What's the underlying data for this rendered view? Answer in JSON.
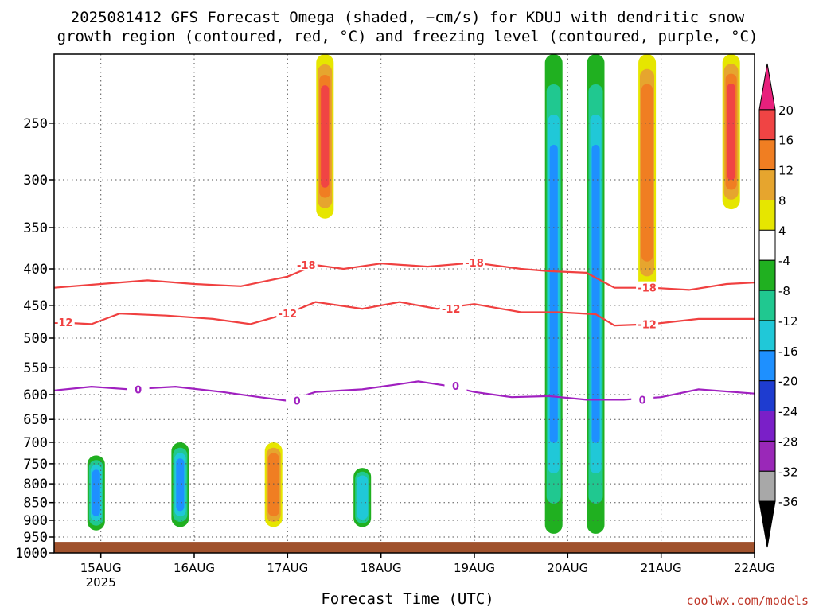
{
  "title": {
    "line1": "2025081412 GFS Forecast Omega (shaded, −cm/s) for KDUJ with dendritic snow",
    "line2": "growth region (contoured, red, °C) and freezing level (contoured, purple, °C)"
  },
  "credit": "coolwx.com/models",
  "colors": {
    "ground": "#a0522d",
    "dgz_contour": "#f04040",
    "freezing_contour": "#a020c0",
    "grid": "#555555"
  },
  "chart_data": {
    "type": "heatmap",
    "xlabel": "Forecast Time (UTC)",
    "ylabel": "",
    "x_ticks": [
      "15AUG",
      "16AUG",
      "17AUG",
      "18AUG",
      "19AUG",
      "20AUG",
      "21AUG",
      "22AUG"
    ],
    "x_sublabel": "2025",
    "x_range_days": [
      14.5,
      22.0
    ],
    "y_ticks": [
      250,
      300,
      350,
      400,
      450,
      500,
      550,
      600,
      650,
      700,
      750,
      800,
      850,
      900,
      950,
      1000
    ],
    "y_range_hpa": [
      1000,
      200
    ],
    "y_scale": "log-pressure",
    "colorbar": {
      "labels": [
        20,
        16,
        12,
        8,
        4,
        -4,
        -8,
        -12,
        -16,
        -20,
        -24,
        -28,
        -32,
        -36
      ],
      "colors": [
        "#e8207c",
        "#f04444",
        "#f07e22",
        "#e6a52e",
        "#e6e600",
        "#ffffff",
        "#20b020",
        "#20c890",
        "#20c8d8",
        "#1e90ff",
        "#1e3cd0",
        "#7a1fc8",
        "#9a28b8",
        "#a8a8a8",
        "#000000"
      ]
    },
    "shaded_features": [
      {
        "day": 14.95,
        "p_top": 730,
        "p_bottom": 930,
        "omega": -14
      },
      {
        "day": 15.85,
        "p_top": 700,
        "p_bottom": 920,
        "omega": -24
      },
      {
        "day": 16.85,
        "p_top": 700,
        "p_bottom": 920,
        "omega": 12
      },
      {
        "day": 17.4,
        "p_top": 200,
        "p_bottom": 340,
        "omega": 14
      },
      {
        "day": 17.8,
        "p_top": 760,
        "p_bottom": 920,
        "omega": -12
      },
      {
        "day": 19.85,
        "p_top": 200,
        "p_bottom": 940,
        "omega": -16
      },
      {
        "day": 20.3,
        "p_top": 200,
        "p_bottom": 940,
        "omega": -20
      },
      {
        "day": 20.85,
        "p_top": 200,
        "p_bottom": 430,
        "omega": 10
      },
      {
        "day": 21.75,
        "p_top": 200,
        "p_bottom": 330,
        "omega": 14
      }
    ],
    "contours": [
      {
        "series": "-18",
        "label": "-18",
        "points": [
          {
            "day": 14.5,
            "p": 425
          },
          {
            "day": 15.0,
            "p": 420
          },
          {
            "day": 15.5,
            "p": 415
          },
          {
            "day": 16.0,
            "p": 420
          },
          {
            "day": 16.5,
            "p": 423
          },
          {
            "day": 17.0,
            "p": 410
          },
          {
            "day": 17.3,
            "p": 395
          },
          {
            "day": 17.6,
            "p": 400
          },
          {
            "day": 18.0,
            "p": 393
          },
          {
            "day": 18.5,
            "p": 397
          },
          {
            "day": 19.0,
            "p": 392
          },
          {
            "day": 19.5,
            "p": 400
          },
          {
            "day": 19.8,
            "p": 403
          },
          {
            "day": 20.2,
            "p": 405
          },
          {
            "day": 20.5,
            "p": 425
          },
          {
            "day": 20.9,
            "p": 425
          },
          {
            "day": 21.3,
            "p": 428
          },
          {
            "day": 21.7,
            "p": 420
          },
          {
            "day": 22.0,
            "p": 418
          }
        ],
        "labels_at_days": [
          17.2,
          19.0,
          20.85
        ]
      },
      {
        "series": "-12",
        "label": "-12",
        "points": [
          {
            "day": 14.5,
            "p": 475
          },
          {
            "day": 14.9,
            "p": 478
          },
          {
            "day": 15.2,
            "p": 462
          },
          {
            "day": 15.7,
            "p": 465
          },
          {
            "day": 16.2,
            "p": 470
          },
          {
            "day": 16.6,
            "p": 478
          },
          {
            "day": 17.0,
            "p": 462
          },
          {
            "day": 17.3,
            "p": 445
          },
          {
            "day": 17.8,
            "p": 455
          },
          {
            "day": 18.2,
            "p": 445
          },
          {
            "day": 18.6,
            "p": 455
          },
          {
            "day": 19.0,
            "p": 448
          },
          {
            "day": 19.5,
            "p": 460
          },
          {
            "day": 19.9,
            "p": 460
          },
          {
            "day": 20.3,
            "p": 463
          },
          {
            "day": 20.5,
            "p": 480
          },
          {
            "day": 20.9,
            "p": 478
          },
          {
            "day": 21.4,
            "p": 470
          },
          {
            "day": 22.0,
            "p": 470
          }
        ],
        "labels_at_days": [
          14.6,
          17.0,
          18.75,
          20.85
        ]
      },
      {
        "series": "0",
        "label": "0",
        "points": [
          {
            "day": 14.5,
            "p": 592
          },
          {
            "day": 14.9,
            "p": 585
          },
          {
            "day": 15.3,
            "p": 590
          },
          {
            "day": 15.8,
            "p": 585
          },
          {
            "day": 16.3,
            "p": 595
          },
          {
            "day": 16.7,
            "p": 605
          },
          {
            "day": 17.0,
            "p": 612
          },
          {
            "day": 17.3,
            "p": 595
          },
          {
            "day": 17.8,
            "p": 590
          },
          {
            "day": 18.2,
            "p": 580
          },
          {
            "day": 18.4,
            "p": 575
          },
          {
            "day": 18.7,
            "p": 583
          },
          {
            "day": 19.0,
            "p": 595
          },
          {
            "day": 19.4,
            "p": 605
          },
          {
            "day": 19.8,
            "p": 603
          },
          {
            "day": 20.2,
            "p": 610
          },
          {
            "day": 20.6,
            "p": 610
          },
          {
            "day": 21.0,
            "p": 605
          },
          {
            "day": 21.4,
            "p": 590
          },
          {
            "day": 22.0,
            "p": 598
          }
        ],
        "labels_at_days": [
          15.4,
          17.1,
          18.8,
          20.8
        ]
      }
    ],
    "grid": true
  }
}
